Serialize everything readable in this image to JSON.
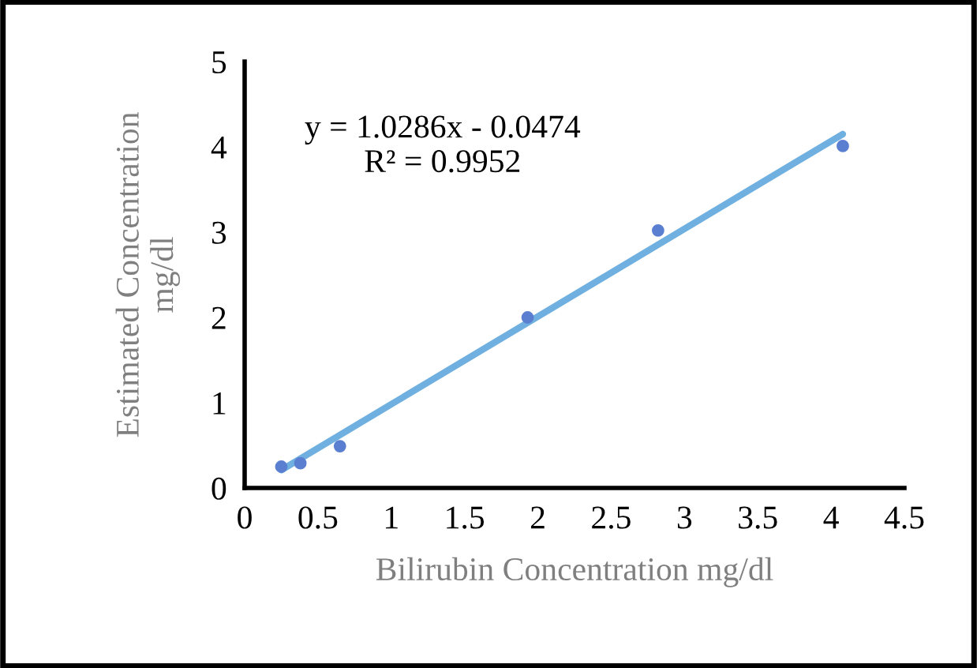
{
  "chart_data": {
    "type": "scatter",
    "xlabel": "Bilirubin Concentration mg/dl",
    "ylabel": "Estimated Concentration\nmg/dl",
    "xlim": [
      0,
      4.5
    ],
    "xticks": [
      0,
      0.5,
      1,
      1.5,
      2,
      2.5,
      3,
      3.5,
      4,
      4.5
    ],
    "ylim": [
      0,
      5
    ],
    "yticks": [
      0,
      1,
      2,
      3,
      4,
      5
    ],
    "grid": false,
    "legend": false,
    "series": [
      {
        "marker": "circle",
        "color": "#5b7fd0",
        "x": [
          0.25,
          0.38,
          0.65,
          1.93,
          2.82,
          4.08
        ],
        "values": [
          0.25,
          0.29,
          0.49,
          2.0,
          3.02,
          4.01
        ]
      },
      {
        "type": "line",
        "color": "#6fb0e0",
        "x": [
          0.25,
          4.08
        ],
        "values": [
          0.21,
          4.15
        ],
        "line_style": "solid"
      }
    ],
    "annotations": [
      "y = 1.0286x - 0.0474\nR² = 0.9952"
    ]
  }
}
